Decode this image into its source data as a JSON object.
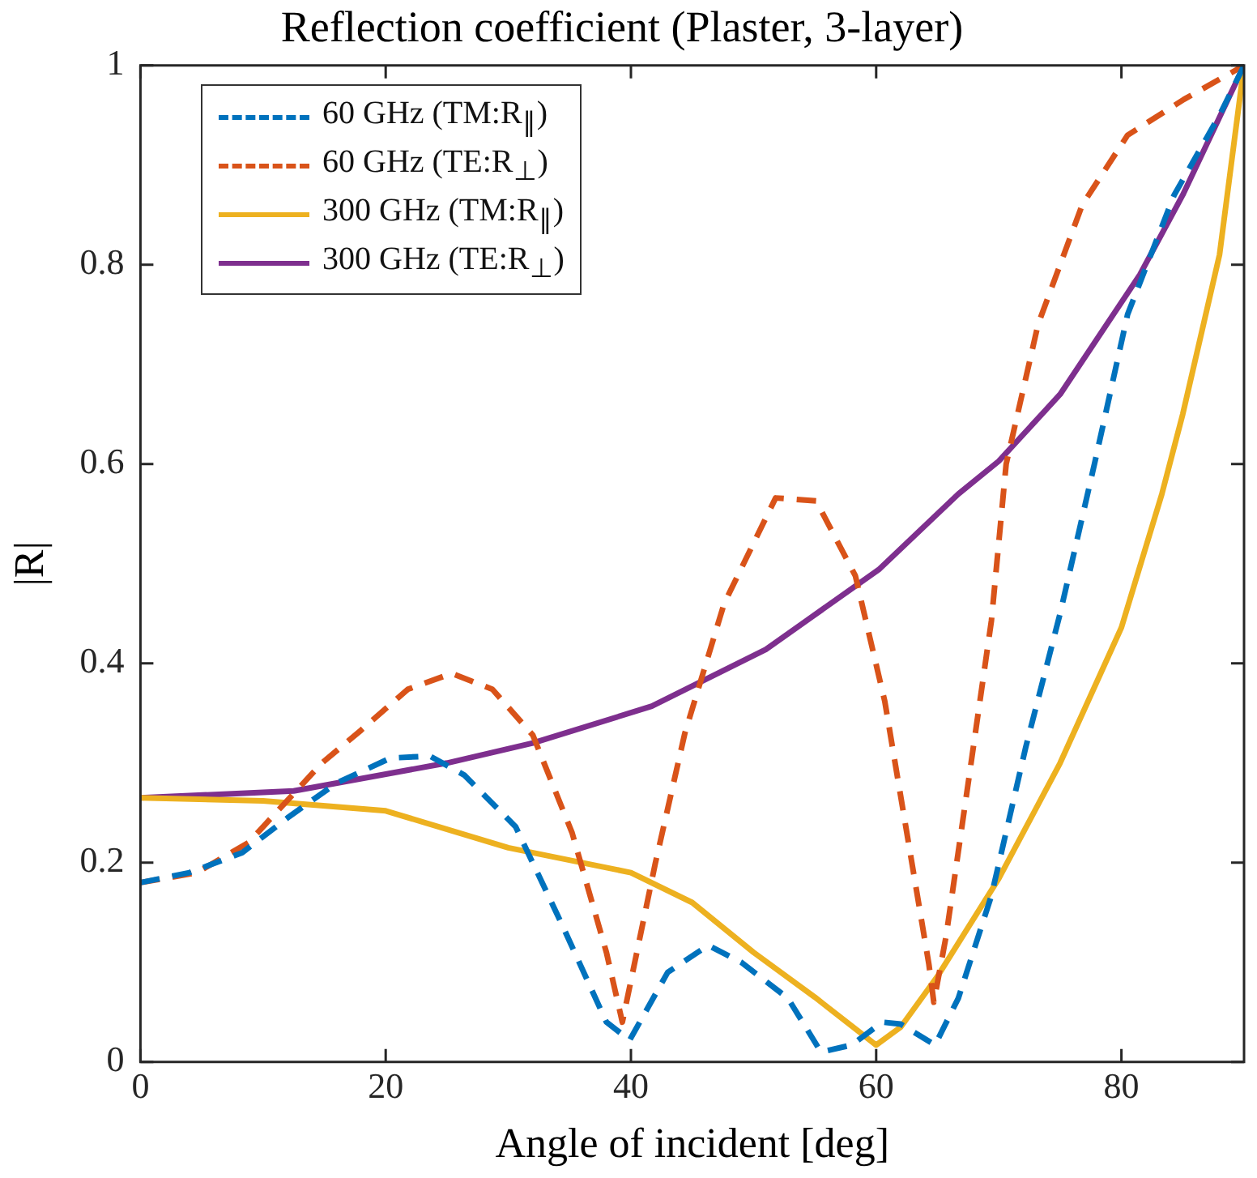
{
  "chart_data": {
    "type": "line",
    "title": "Reflection coefficient (Plaster, 3-layer)",
    "xlabel": "Angle of incident [deg]",
    "ylabel": "|R|",
    "xlim": [
      0,
      90
    ],
    "xticks": [
      0,
      20,
      40,
      60,
      80
    ],
    "ylim": [
      0,
      1
    ],
    "yticks": [
      0,
      0.2,
      0.4,
      0.6,
      0.8,
      1
    ],
    "grid": false,
    "legend": "top left",
    "marker": "none",
    "series": [
      {
        "name": "60 GHz (TM:R$_{∥}$)",
        "color": "#0072bd",
        "line_style": "dashed",
        "x": [
          0,
          4,
          8.3,
          12,
          16,
          20.4,
          23.6,
          26.4,
          30.6,
          34.3,
          38,
          39.9,
          43,
          46.3,
          49,
          52.8,
          55.5,
          58,
          60.5,
          62,
          64.8,
          66.7,
          69.4,
          72.2,
          75,
          77.8,
          80.5,
          84.3,
          88,
          90
        ],
        "values": [
          0.18,
          0.19,
          0.21,
          0.245,
          0.28,
          0.305,
          0.307,
          0.288,
          0.236,
          0.14,
          0.04,
          0.022,
          0.09,
          0.117,
          0.1,
          0.064,
          0.01,
          0.017,
          0.04,
          0.038,
          0.017,
          0.064,
          0.167,
          0.316,
          0.45,
          0.6,
          0.75,
          0.87,
          0.95,
          1
        ]
      },
      {
        "name": "60 GHz (TE:R$_{⊥}$)",
        "color": "#d95319",
        "line_style": "dashed",
        "x": [
          0,
          4.6,
          8.8,
          14.8,
          18,
          21.8,
          25.4,
          28.7,
          32,
          35.2,
          38,
          39.3,
          42,
          44.4,
          47.6,
          51.8,
          55.1,
          58.3,
          60.7,
          62.5,
          64.3,
          64.7,
          65.7,
          67.6,
          69.4,
          70.6,
          73.2,
          76.8,
          80.5,
          85.1,
          90
        ],
        "values": [
          0.18,
          0.19,
          0.22,
          0.3,
          0.333,
          0.374,
          0.39,
          0.374,
          0.328,
          0.23,
          0.11,
          0.04,
          0.2,
          0.33,
          0.46,
          0.566,
          0.563,
          0.488,
          0.362,
          0.23,
          0.098,
          0.06,
          0.126,
          0.288,
          0.443,
          0.6,
          0.74,
          0.86,
          0.93,
          0.966,
          1
        ]
      },
      {
        "name": "300 GHz (TM:R$_{∥}$)",
        "color": "#edb120",
        "line_style": "solid",
        "x": [
          0,
          10,
          20,
          30,
          40,
          45,
          50,
          55,
          60,
          62,
          65,
          70,
          75,
          80,
          83.3,
          85,
          88,
          90
        ],
        "values": [
          0.265,
          0.262,
          0.252,
          0.215,
          0.19,
          0.16,
          0.11,
          0.065,
          0.017,
          0.035,
          0.086,
          0.184,
          0.3,
          0.436,
          0.57,
          0.65,
          0.81,
          1
        ]
      },
      {
        "name": "300 GHz (TE:R$_{⊥}$)",
        "color": "#7e2f8e",
        "line_style": "solid",
        "x": [
          0,
          12.5,
          25,
          32,
          41.7,
          51,
          60.2,
          66.7,
          70,
          75,
          81.5,
          85,
          90
        ],
        "values": [
          0.265,
          0.272,
          0.3,
          0.32,
          0.357,
          0.414,
          0.494,
          0.57,
          0.603,
          0.67,
          0.79,
          0.87,
          1
        ]
      }
    ]
  }
}
